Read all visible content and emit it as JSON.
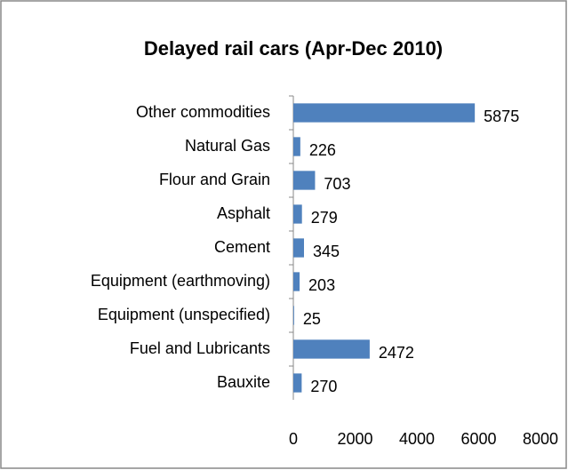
{
  "chart_data": {
    "type": "barh",
    "title": "Delayed rail cars (Apr-Dec 2010)",
    "categories": [
      "Other commodities",
      "Natural Gas",
      "Flour and Grain",
      "Asphalt",
      "Cement",
      "Equipment (earthmoving)",
      "Equipment (unspecified)",
      "Fuel and Lubricants",
      "Bauxite"
    ],
    "values": [
      5875,
      226,
      703,
      279,
      345,
      203,
      25,
      2472,
      270
    ],
    "color": "#4f81bd",
    "xlim": [
      0,
      8000
    ],
    "xticks": [
      0,
      2000,
      4000,
      6000,
      8000
    ],
    "grid": false
  }
}
